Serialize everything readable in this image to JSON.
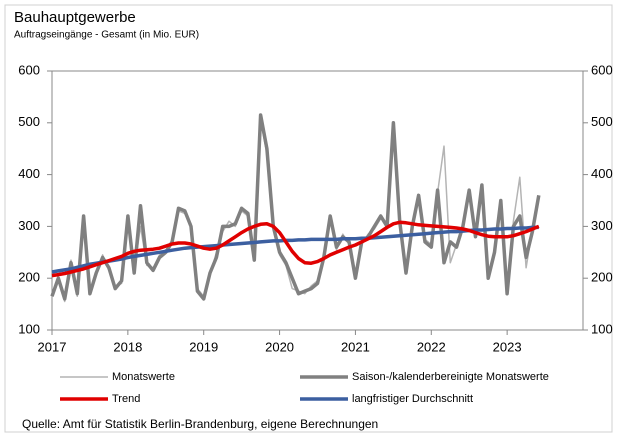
{
  "chart_data": {
    "type": "line",
    "title": "Bauhauptgewerbe",
    "subtitle": "Auftragseingänge - Gesamt (in Mio. EUR)",
    "source": "Quelle:  Amt für  Statistik Berlin-Brandenburg,  eigene  Berechnungen",
    "x": [
      2017,
      2017.083,
      2017.167,
      2017.25,
      2017.333,
      2017.417,
      2017.5,
      2017.583,
      2017.667,
      2017.75,
      2017.833,
      2017.917,
      2018,
      2018.083,
      2018.167,
      2018.25,
      2018.333,
      2018.417,
      2018.5,
      2018.583,
      2018.667,
      2018.75,
      2018.833,
      2018.917,
      2019,
      2019.083,
      2019.167,
      2019.25,
      2019.333,
      2019.417,
      2019.5,
      2019.583,
      2019.667,
      2019.75,
      2019.833,
      2019.917,
      2020,
      2020.083,
      2020.167,
      2020.25,
      2020.333,
      2020.417,
      2020.5,
      2020.583,
      2020.667,
      2020.75,
      2020.833,
      2020.917,
      2021,
      2021.083,
      2021.167,
      2021.25,
      2021.333,
      2021.417,
      2021.5,
      2021.583,
      2021.667,
      2021.75,
      2021.833,
      2021.917,
      2022,
      2022.083,
      2022.167,
      2022.25,
      2022.333,
      2022.417,
      2022.5,
      2022.583,
      2022.667,
      2022.75,
      2022.833,
      2022.917,
      2023,
      2023.083,
      2023.167,
      2023.25,
      2023.333,
      2023.417
    ],
    "xlim": [
      2017,
      2024
    ],
    "xticks": [
      2017,
      2018,
      2019,
      2020,
      2021,
      2022,
      2023
    ],
    "ylim": [
      100,
      600
    ],
    "yticks": [
      100,
      200,
      300,
      400,
      500,
      600
    ],
    "y2lim": [
      100,
      600
    ],
    "y2ticks": [
      100,
      200,
      300,
      400,
      500,
      600
    ],
    "series": [
      {
        "name": "Monatswerte",
        "color": "#b4b4b4",
        "width": 1.5,
        "values": [
          170,
          195,
          155,
          235,
          165,
          315,
          175,
          205,
          245,
          215,
          185,
          190,
          315,
          215,
          300,
          225,
          220,
          245,
          255,
          265,
          330,
          325,
          305,
          180,
          165,
          205,
          250,
          290,
          310,
          300,
          330,
          320,
          240,
          505,
          440,
          305,
          245,
          225,
          180,
          175,
          170,
          185,
          195,
          235,
          315,
          255,
          285,
          265,
          205,
          265,
          285,
          295,
          315,
          305,
          495,
          305,
          215,
          295,
          355,
          275,
          265,
          365,
          455,
          230,
          265,
          300,
          365,
          285,
          375,
          205,
          255,
          345,
          175,
          310,
          395,
          220,
          295,
          355
        ]
      },
      {
        "name": "Saison-/kalenderbereinigte Monatswerte",
        "color": "#808080",
        "width": 3.5,
        "values": [
          165,
          200,
          160,
          230,
          170,
          320,
          170,
          210,
          240,
          220,
          180,
          195,
          320,
          210,
          340,
          230,
          215,
          240,
          250,
          270,
          335,
          330,
          300,
          175,
          160,
          210,
          240,
          300,
          300,
          305,
          335,
          325,
          235,
          515,
          450,
          300,
          250,
          230,
          200,
          170,
          175,
          180,
          190,
          240,
          320,
          260,
          280,
          270,
          200,
          270,
          280,
          300,
          320,
          300,
          500,
          310,
          210,
          300,
          360,
          270,
          260,
          370,
          230,
          270,
          260,
          300,
          370,
          280,
          380,
          200,
          250,
          350,
          170,
          300,
          320,
          240,
          290,
          360
        ]
      },
      {
        "name": "Trend",
        "color": "#e00000",
        "width": 3.5,
        "values": [
          205,
          207,
          209,
          212,
          215,
          218,
          222,
          226,
          230,
          234,
          238,
          242,
          248,
          252,
          254,
          255,
          256,
          258,
          262,
          266,
          268,
          268,
          266,
          262,
          258,
          256,
          258,
          264,
          272,
          280,
          288,
          295,
          300,
          304,
          305,
          300,
          288,
          270,
          252,
          238,
          230,
          229,
          232,
          238,
          245,
          250,
          255,
          260,
          264,
          270,
          276,
          282,
          290,
          298,
          305,
          308,
          307,
          305,
          303,
          302,
          301,
          300,
          299,
          298,
          297,
          295,
          292,
          288,
          284,
          281,
          280,
          280,
          280,
          282,
          286,
          290,
          295,
          300
        ]
      },
      {
        "name": "langfristiger Durchschnitt",
        "color": "#3c5fa0",
        "width": 3.5,
        "values": [
          212,
          214,
          216,
          218,
          221,
          224,
          227,
          229,
          231,
          233,
          235,
          237,
          240,
          242,
          244,
          246,
          248,
          250,
          252,
          254,
          256,
          258,
          259,
          260,
          261,
          262,
          263,
          264,
          265,
          266,
          267,
          268,
          269,
          270,
          271,
          272,
          272,
          273,
          273,
          274,
          274,
          275,
          275,
          275,
          275,
          275,
          276,
          276,
          276,
          277,
          277,
          278,
          279,
          280,
          281,
          282,
          283,
          284,
          285,
          286,
          287,
          288,
          289,
          290,
          290,
          291,
          292,
          293,
          293,
          294,
          295,
          295,
          296,
          296,
          297,
          297,
          298,
          298
        ]
      }
    ]
  }
}
